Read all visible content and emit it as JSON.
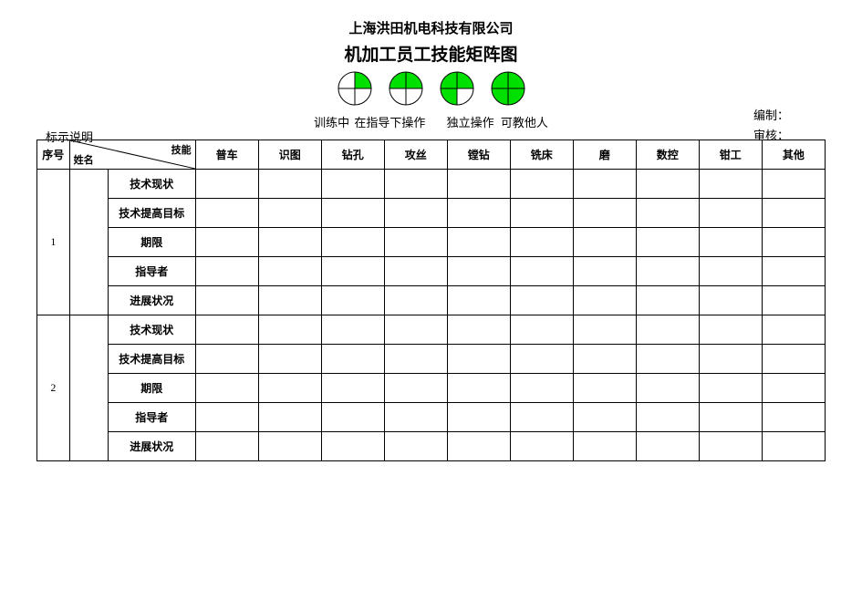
{
  "header": {
    "company": "上海洪田机电科技有限公司",
    "title": "机加工员工技能矩阵图"
  },
  "approval": {
    "prepare_label": "编制：",
    "review_label": "审核："
  },
  "legend": {
    "note_label": "标示说明",
    "captions": {
      "c1": "训练中",
      "c2": "在指导下操作",
      "c3": "独立操作",
      "c4": "可教他人"
    },
    "circle_geometry": {
      "radius": 18,
      "stroke": "#000000",
      "green": "#00e000",
      "white": "#ffffff"
    },
    "circles": [
      {
        "quadrants": [
          true,
          false,
          false,
          false
        ]
      },
      {
        "quadrants": [
          true,
          true,
          false,
          false
        ]
      },
      {
        "quadrants": [
          true,
          true,
          true,
          false
        ]
      },
      {
        "quadrants": [
          true,
          true,
          true,
          true
        ]
      }
    ]
  },
  "table": {
    "header": {
      "seq": "序号",
      "diag_top": "技能",
      "diag_bottom": "姓名",
      "skills": [
        "普车",
        "识图",
        "钻孔",
        "攻丝",
        "镗钻",
        "铣床",
        "磨",
        "数控",
        "钳工",
        "其他"
      ]
    },
    "row_labels": [
      "技术现状",
      "技术提高目标",
      "期限",
      "指导者",
      "进展状况"
    ],
    "groups": [
      {
        "seq": "1",
        "name": "",
        "cells": [
          [
            "",
            "",
            "",
            "",
            "",
            "",
            "",
            "",
            "",
            ""
          ],
          [
            "",
            "",
            "",
            "",
            "",
            "",
            "",
            "",
            "",
            ""
          ],
          [
            "",
            "",
            "",
            "",
            "",
            "",
            "",
            "",
            "",
            ""
          ],
          [
            "",
            "",
            "",
            "",
            "",
            "",
            "",
            "",
            "",
            ""
          ],
          [
            "",
            "",
            "",
            "",
            "",
            "",
            "",
            "",
            "",
            ""
          ]
        ]
      },
      {
        "seq": "2",
        "name": "",
        "cells": [
          [
            "",
            "",
            "",
            "",
            "",
            "",
            "",
            "",
            "",
            ""
          ],
          [
            "",
            "",
            "",
            "",
            "",
            "",
            "",
            "",
            "",
            ""
          ],
          [
            "",
            "",
            "",
            "",
            "",
            "",
            "",
            "",
            "",
            ""
          ],
          [
            "",
            "",
            "",
            "",
            "",
            "",
            "",
            "",
            "",
            ""
          ],
          [
            "",
            "",
            "",
            "",
            "",
            "",
            "",
            "",
            "",
            ""
          ]
        ]
      }
    ]
  }
}
